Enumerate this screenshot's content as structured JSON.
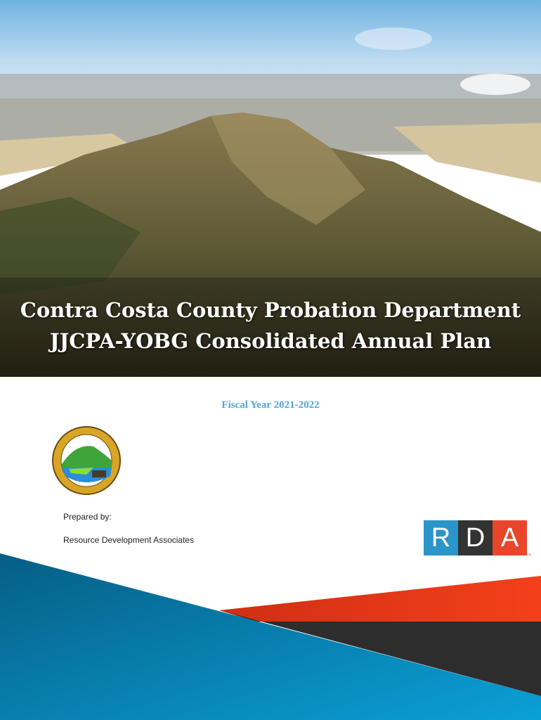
{
  "cover": {
    "title_line1": "Contra Costa County Probation Department",
    "title_line2": "JJCPA-YOBG Consolidated Annual Plan",
    "fiscal_year": "Fiscal Year 2021-2022",
    "prepared_by_label": "Prepared by:",
    "prepared_by": "Resource Development Associates",
    "seal_text": "THE SEAL OF CONTRA COSTA COUNTY CALIFORNIA",
    "logo": {
      "letters": [
        "R",
        "D",
        "A"
      ],
      "trademark": "TM",
      "colors": [
        "#2a95c9",
        "#333333",
        "#e8462a"
      ]
    },
    "colors": {
      "accent_blue": "#0a7fb0",
      "accent_red": "#e0381a",
      "accent_dark": "#2d2d2d",
      "fiscal_year_text": "#4fa6d6"
    }
  }
}
